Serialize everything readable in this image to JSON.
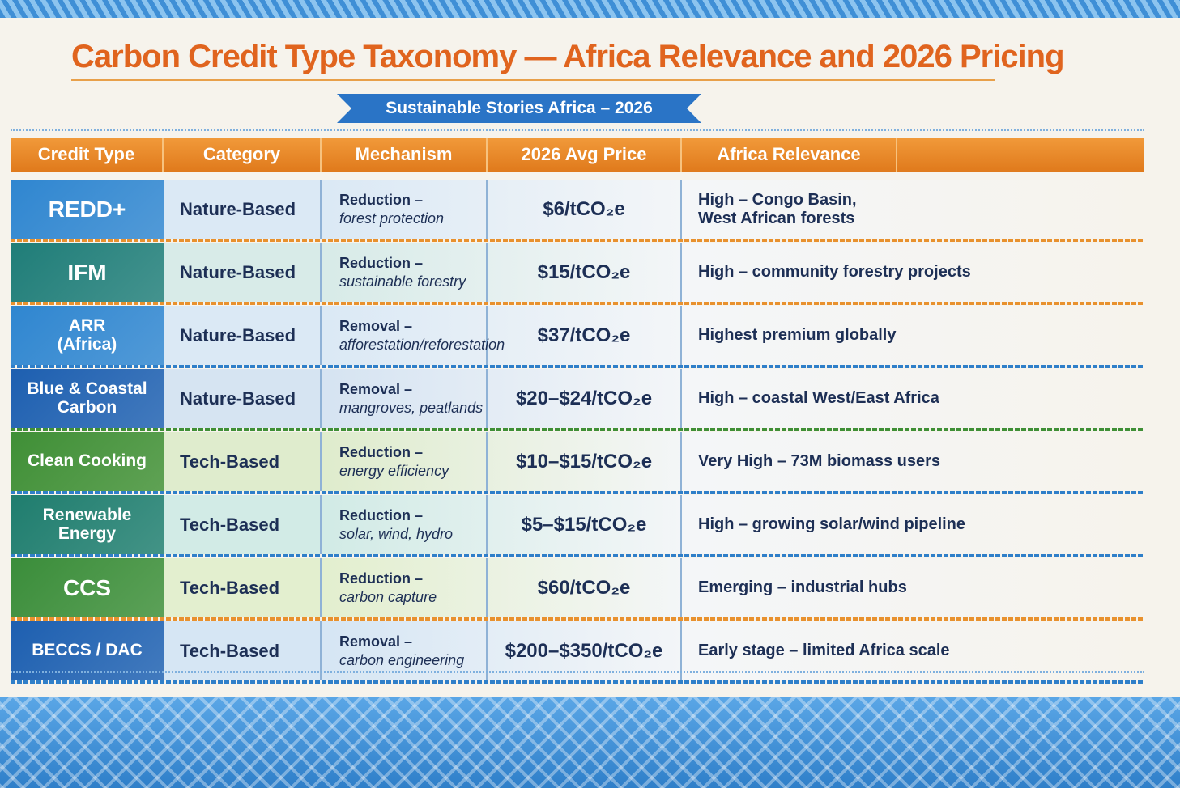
{
  "header": {
    "title": "Carbon Credit Type Taxonomy — Africa Relevance and 2026 Pricing",
    "subtitle": "Sustainable Stories Africa – 2026"
  },
  "table": {
    "columns": [
      "Credit Type",
      "Category",
      "Mechanism",
      "2026 Avg Price",
      "Africa Relevance"
    ],
    "rows": [
      {
        "credit_type": [
          "REDD+"
        ],
        "category": "Nature-Based",
        "mechanism": [
          "Reduction –",
          "forest protection"
        ],
        "price": "$6/tCO₂e",
        "relevance": [
          "High – Congo Basin,",
          "West African forests"
        ]
      },
      {
        "credit_type": [
          "IFM"
        ],
        "category": "Nature-Based",
        "mechanism": [
          "Reduction –",
          "sustainable forestry"
        ],
        "price": "$15/tCO₂e",
        "relevance": [
          "High – community forestry projects"
        ]
      },
      {
        "credit_type": [
          "ARR",
          "(Africa)"
        ],
        "category": "Nature-Based",
        "mechanism": [
          "Removal –",
          "afforestation/reforestation"
        ],
        "price": "$37/tCO₂e",
        "relevance": [
          "Highest premium globally"
        ]
      },
      {
        "credit_type": [
          "Blue & Coastal",
          "Carbon"
        ],
        "category": "Nature-Based",
        "mechanism": [
          "Removal –",
          "mangroves, peatlands"
        ],
        "price": "$20–$24/tCO₂e",
        "relevance": [
          "High – coastal West/East Africa"
        ]
      },
      {
        "credit_type": [
          "Clean Cooking"
        ],
        "category": "Tech-Based",
        "mechanism": [
          "Reduction –",
          "energy efficiency"
        ],
        "price": "$10–$15/tCO₂e",
        "relevance": [
          "Very High – 73M biomass users"
        ]
      },
      {
        "credit_type": [
          "Renewable",
          "Energy"
        ],
        "category": "Tech-Based",
        "mechanism": [
          "Reduction –",
          "solar, wind, hydro"
        ],
        "price": "$5–$15/tCO₂e",
        "relevance": [
          "High – growing solar/wind pipeline"
        ]
      },
      {
        "credit_type": [
          "CCS"
        ],
        "category": "Tech-Based",
        "mechanism": [
          "Reduction –",
          "carbon capture"
        ],
        "price": "$60/tCO₂e",
        "relevance": [
          "Emerging – industrial hubs"
        ]
      },
      {
        "credit_type": [
          "BECCS / DAC"
        ],
        "category": "Tech-Based",
        "mechanism": [
          "Removal –",
          "carbon engineering"
        ],
        "price": "$200–$350/tCO₂e",
        "relevance": [
          "Early stage – limited Africa scale"
        ]
      }
    ]
  }
}
